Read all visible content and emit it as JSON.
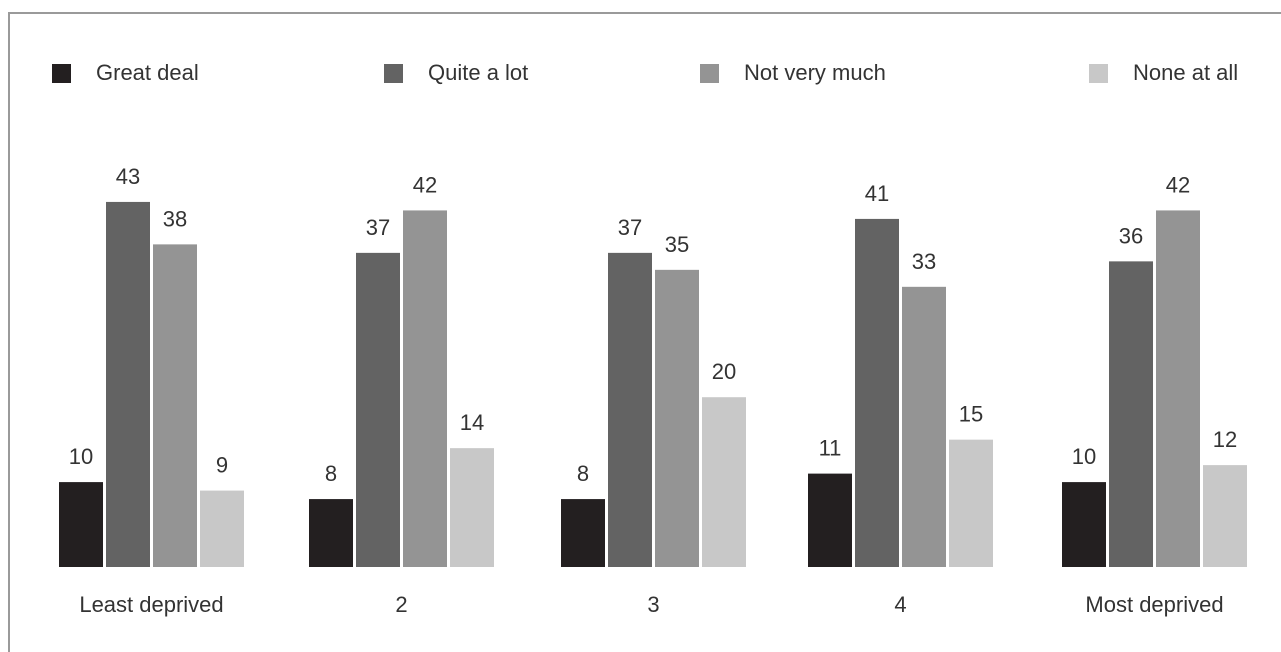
{
  "chart_data": {
    "type": "bar",
    "categories": [
      "Least deprived",
      "2",
      "3",
      "4",
      "Most deprived"
    ],
    "series": [
      {
        "name": "Great deal",
        "color": "#231f20",
        "values": [
          10,
          8,
          8,
          11,
          10
        ]
      },
      {
        "name": "Quite a lot",
        "color": "#636363",
        "values": [
          43,
          37,
          37,
          41,
          36
        ]
      },
      {
        "name": "Not very much",
        "color": "#949494",
        "values": [
          38,
          42,
          35,
          33,
          42
        ]
      },
      {
        "name": "None at all",
        "color": "#c8c8c8",
        "values": [
          9,
          14,
          20,
          15,
          12
        ]
      }
    ],
    "ylim": [
      0,
      50
    ],
    "grid": false,
    "legend_position": "top"
  }
}
